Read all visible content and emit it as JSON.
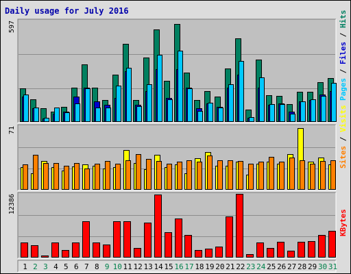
{
  "chart_data": {
    "type": "bar",
    "title": "Daily usage for July 2016",
    "categories": [
      "1",
      "2",
      "3",
      "4",
      "5",
      "6",
      "7",
      "8",
      "9",
      "10",
      "11",
      "12",
      "13",
      "14",
      "15",
      "16",
      "17",
      "18",
      "19",
      "20",
      "21",
      "22",
      "23",
      "24",
      "25",
      "26",
      "27",
      "28",
      "29",
      "30",
      "31"
    ],
    "weekend_days": [
      "2",
      "3",
      "9",
      "10",
      "16",
      "17",
      "23",
      "24",
      "30",
      "31"
    ],
    "panels": [
      {
        "id": "top",
        "ymax_label": "597",
        "ylim": [
          0,
          597
        ],
        "right_labels": [
          {
            "text": "Pages",
            "color": "#00c8ff"
          },
          {
            "text": "Files",
            "color": "#0000cc"
          },
          {
            "text": "Hits",
            "color": "#008060"
          }
        ],
        "series": [
          {
            "name": "Hits",
            "color": "#008060",
            "values": [
              198,
              133,
              80,
              60,
              88,
              200,
              338,
              200,
              130,
              278,
              460,
              128,
              380,
              544,
              242,
              578,
              292,
              128,
              183,
              148,
              313,
              492,
              73,
              368,
              157,
              153,
              106,
              178,
              178,
              233,
              258
            ]
          },
          {
            "name": "Files",
            "color": "#0000cc",
            "values": [
              150,
              80,
              20,
              50,
              60,
              150,
              200,
              120,
              100,
              140,
              300,
              100,
              180,
              310,
              140,
              310,
              200,
              80,
              110,
              90,
              200,
              280,
              25,
              200,
              100,
              110,
              60,
              120,
              130,
              160,
              180
            ]
          },
          {
            "name": "Pages",
            "color": "#00c8ff",
            "values": [
              163,
              83,
              23,
              83,
              58,
              108,
              198,
              83,
              83,
              213,
              318,
              93,
              223,
              394,
              133,
              418,
              198,
              63,
              113,
              83,
              223,
              357,
              28,
              263,
              103,
              103,
              48,
              123,
              133,
              153,
              228
            ]
          }
        ]
      },
      {
        "id": "middle",
        "ymax_label": "71",
        "ylim": [
          0,
          71
        ],
        "right_labels": [
          {
            "text": "Sites",
            "color": "#ff8000"
          },
          {
            "text": "Visits",
            "color": "#ffff00"
          }
        ],
        "series": [
          {
            "name": "Visits",
            "color": "#ffff00",
            "values": [
              25,
              18,
              32,
              25,
              21,
              26,
              28,
              27,
              24,
              25,
              44,
              30,
              23,
              39,
              25,
              28,
              18,
              35,
              42,
              27,
              27,
              31,
              17,
              29,
              31,
              29,
              40,
              69,
              31,
              36,
              28
            ]
          },
          {
            "name": "Sites",
            "color": "#ff8000",
            "values": [
              28,
              39,
              30,
              30,
              27,
              30,
              24,
              29,
              32,
              29,
              33,
              40,
              34,
              32,
              29,
              31,
              33,
              31,
              38,
              33,
              33,
              32,
              29,
              31,
              37,
              31,
              36,
              33,
              29,
              32,
              33
            ]
          }
        ]
      },
      {
        "id": "bottom",
        "ymax_label": "12386",
        "ylim": [
          0,
          12386
        ],
        "right_labels": [
          {
            "text": "KBytes",
            "color": "#ff0000"
          }
        ],
        "series": [
          {
            "name": "KBytes",
            "color": "#ff0000",
            "values": [
              2983,
              2427,
              414,
              2983,
              1426,
              2940,
              7030,
              2904,
              2590,
              7000,
              7080,
              1810,
              6800,
              12300,
              4960,
              7630,
              4350,
              1495,
              1740,
              2187,
              7980,
              12400,
              600,
              2980,
              1875,
              3035,
              1300,
              3030,
              3260,
              4410,
              5150
            ]
          }
        ]
      }
    ]
  }
}
